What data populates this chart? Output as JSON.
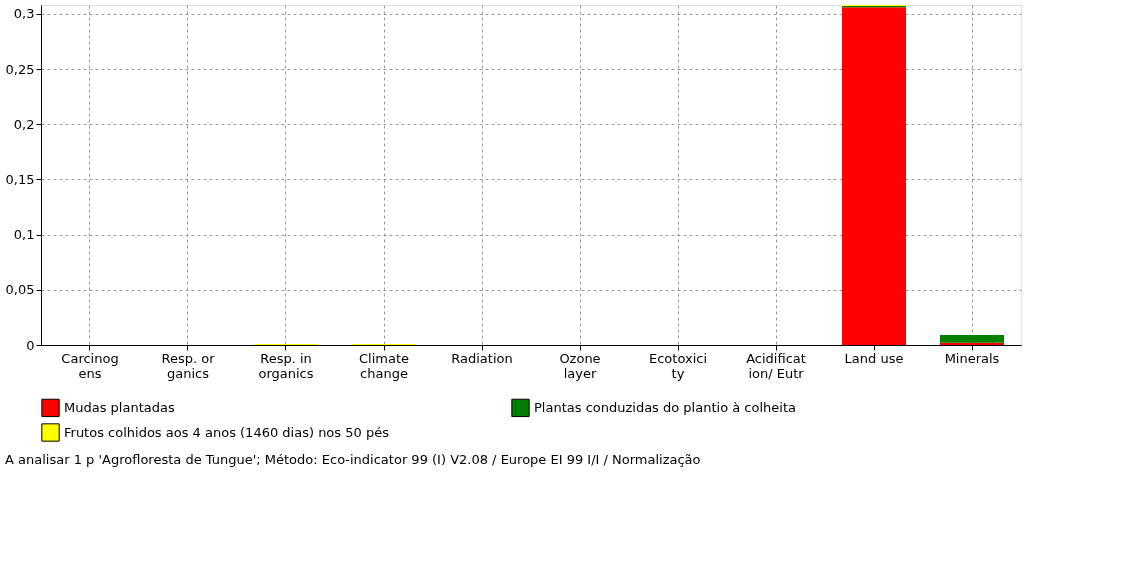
{
  "chart_data": {
    "type": "bar",
    "stacked": true,
    "categories": [
      "Carcinog\nens",
      "Resp. or\nganics",
      "Resp. in\norganics",
      "Climate\nchange",
      "Radiation",
      "Ozone\nlayer",
      "Ecotoxici\nty",
      "Acidificat\nion/ Eutr",
      "Land use",
      "Minerals"
    ],
    "series": [
      {
        "name": "Mudas plantadas",
        "color": "#ff0000",
        "values": [
          0,
          0,
          0,
          0,
          0,
          0,
          0,
          0,
          0.306,
          0.002
        ]
      },
      {
        "name": "Plantas conduzidas do plantio à colheita",
        "color": "#007f00",
        "values": [
          0,
          0,
          0,
          0,
          0,
          0,
          0,
          0,
          0.001,
          0.007
        ]
      },
      {
        "name": "Frutos colhidos aos 4 anos (1460 dias) nos 50 pés",
        "color": "#ffff00",
        "values": [
          0,
          0,
          0.001,
          0.001,
          0,
          0,
          0,
          0,
          0.001,
          0
        ]
      }
    ],
    "ylim": [
      0,
      0.308
    ],
    "yticks": [
      0,
      {
        "value": 0.05,
        "label": "0,05"
      },
      {
        "value": 0.1,
        "label": "0,1"
      },
      {
        "value": 0.15,
        "label": "0,15"
      },
      {
        "value": 0.2,
        "label": "0,2"
      },
      {
        "value": 0.25,
        "label": "0,25"
      },
      {
        "value": 0.3,
        "label": "0,3"
      }
    ],
    "grid": true,
    "legend": "bottom",
    "annotations": [
      "A analisar 1 p 'Agrofloresta de Tungue';  Método: Eco-indicator 99 (I) V2.08 / Europe EI 99 I/I / Normalização"
    ]
  }
}
